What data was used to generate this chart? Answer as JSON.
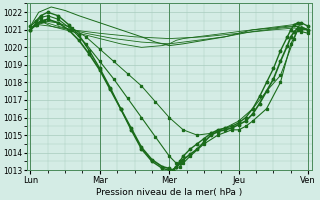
{
  "xlabel": "Pression niveau de la mer( hPa )",
  "ylim": [
    1013,
    1022.5
  ],
  "yticks": [
    1013,
    1014,
    1015,
    1016,
    1017,
    1018,
    1019,
    1020,
    1021,
    1022
  ],
  "xtick_labels": [
    "Lun",
    "Mar",
    "Mer",
    "Jeu",
    "Ven"
  ],
  "xtick_positions": [
    0,
    1,
    2,
    3,
    4
  ],
  "bg_color": "#d4ece5",
  "grid_color": "#a8ccbe",
  "line_color": "#1a6b1a",
  "series": [
    {
      "x": [
        0.0,
        0.05,
        0.1,
        0.2,
        0.3,
        0.5,
        0.7,
        1.0,
        1.3,
        1.6,
        1.9,
        2.0,
        2.05,
        2.1,
        2.2,
        2.4,
        2.6,
        2.8,
        3.0,
        3.2,
        3.4,
        3.6,
        3.8,
        3.85,
        3.9,
        4.0
      ],
      "y": [
        1021.0,
        1021.2,
        1021.3,
        1021.4,
        1021.2,
        1021.0,
        1020.8,
        1020.5,
        1020.2,
        1020.0,
        1020.1,
        1020.2,
        1020.3,
        1020.4,
        1020.5,
        1020.6,
        1020.7,
        1020.8,
        1020.9,
        1021.0,
        1021.1,
        1021.2,
        1021.3,
        1021.3,
        1021.2,
        1021.0
      ],
      "lw": 0.6,
      "marker": null,
      "alpha": 1.0
    },
    {
      "x": [
        0.0,
        0.1,
        0.3,
        0.6,
        1.0,
        1.5,
        2.0,
        2.5,
        3.0,
        3.5,
        3.8,
        4.0
      ],
      "y": [
        1021.1,
        1021.3,
        1021.2,
        1021.0,
        1020.8,
        1020.6,
        1020.5,
        1020.6,
        1020.8,
        1021.0,
        1021.1,
        1021.0
      ],
      "lw": 0.6,
      "marker": null,
      "alpha": 1.0
    },
    {
      "x": [
        0.0,
        0.15,
        0.4,
        0.8,
        1.2,
        1.6,
        2.0,
        2.4,
        2.8,
        3.2,
        3.6,
        3.85,
        3.9,
        4.0
      ],
      "y": [
        1021.0,
        1021.5,
        1021.2,
        1020.8,
        1020.5,
        1020.3,
        1020.2,
        1020.4,
        1020.6,
        1020.9,
        1021.1,
        1021.2,
        1021.1,
        1021.0
      ],
      "lw": 0.6,
      "marker": null,
      "alpha": 1.0
    },
    {
      "x": [
        0.0,
        0.12,
        0.3,
        0.5,
        0.7,
        1.0,
        1.3,
        1.6,
        1.8,
        2.0,
        2.2,
        2.5,
        2.8,
        3.0,
        3.2,
        3.5,
        3.7,
        3.85,
        3.9,
        4.0
      ],
      "y": [
        1021.2,
        1022.0,
        1022.3,
        1022.1,
        1021.8,
        1021.4,
        1021.0,
        1020.6,
        1020.3,
        1020.1,
        1020.2,
        1020.4,
        1020.6,
        1020.8,
        1021.0,
        1021.1,
        1021.2,
        1021.2,
        1021.1,
        1021.0
      ],
      "lw": 0.7,
      "marker": null,
      "alpha": 1.0
    },
    {
      "x": [
        0.0,
        0.1,
        0.2,
        0.4,
        0.6,
        0.8,
        1.0,
        1.2,
        1.4,
        1.6,
        1.8,
        2.0,
        2.2,
        2.4,
        2.6,
        2.8,
        3.0,
        3.2,
        3.4,
        3.6,
        3.8,
        3.85,
        3.9,
        4.0
      ],
      "y": [
        1021.0,
        1021.3,
        1021.5,
        1021.4,
        1021.1,
        1020.6,
        1019.9,
        1019.2,
        1018.5,
        1017.8,
        1016.9,
        1016.0,
        1015.3,
        1015.0,
        1015.1,
        1015.4,
        1015.8,
        1016.5,
        1017.5,
        1018.4,
        1020.5,
        1021.0,
        1021.0,
        1021.0
      ],
      "lw": 0.7,
      "marker": "s",
      "alpha": 1.0
    },
    {
      "x": [
        0.0,
        0.08,
        0.15,
        0.25,
        0.4,
        0.6,
        0.8,
        1.0,
        1.2,
        1.4,
        1.6,
        1.8,
        2.0,
        2.1,
        2.15,
        2.2,
        2.3,
        2.5,
        2.7,
        2.9,
        3.0,
        3.1,
        3.2,
        3.4,
        3.6,
        3.75,
        3.85,
        3.9,
        4.0
      ],
      "y": [
        1021.0,
        1021.4,
        1021.7,
        1021.8,
        1021.6,
        1021.0,
        1020.2,
        1019.2,
        1018.2,
        1017.1,
        1016.0,
        1014.9,
        1013.8,
        1013.4,
        1013.2,
        1013.4,
        1013.8,
        1014.5,
        1015.0,
        1015.3,
        1015.3,
        1015.5,
        1015.8,
        1016.5,
        1018.0,
        1020.2,
        1021.0,
        1020.9,
        1020.8
      ],
      "lw": 0.8,
      "marker": "s",
      "alpha": 1.0
    },
    {
      "x": [
        0.0,
        0.08,
        0.15,
        0.25,
        0.4,
        0.55,
        0.7,
        0.85,
        1.0,
        1.15,
        1.3,
        1.45,
        1.6,
        1.75,
        1.9,
        2.0,
        2.05,
        2.1,
        2.15,
        2.2,
        2.3,
        2.4,
        2.5,
        2.6,
        2.7,
        2.8,
        2.9,
        3.0,
        3.1,
        3.2,
        3.3,
        3.4,
        3.5,
        3.6,
        3.7,
        3.75,
        3.8,
        3.85,
        3.9,
        4.0
      ],
      "y": [
        1021.0,
        1021.3,
        1021.5,
        1021.6,
        1021.4,
        1021.0,
        1020.4,
        1019.6,
        1018.7,
        1017.6,
        1016.5,
        1015.4,
        1014.3,
        1013.6,
        1013.2,
        1013.1,
        1013.0,
        1013.2,
        1013.4,
        1013.6,
        1013.9,
        1014.2,
        1014.6,
        1015.0,
        1015.2,
        1015.3,
        1015.4,
        1015.6,
        1015.8,
        1016.2,
        1016.8,
        1017.5,
        1018.2,
        1019.2,
        1020.1,
        1020.6,
        1020.9,
        1021.1,
        1021.1,
        1021.0
      ],
      "lw": 1.2,
      "marker": "o",
      "alpha": 1.0
    },
    {
      "x": [
        0.0,
        0.08,
        0.15,
        0.25,
        0.4,
        0.55,
        0.7,
        0.85,
        1.0,
        1.15,
        1.3,
        1.45,
        1.6,
        1.75,
        1.9,
        2.0,
        2.05,
        2.1,
        2.15,
        2.2,
        2.3,
        2.4,
        2.5,
        2.6,
        2.7,
        2.8,
        2.9,
        3.0,
        3.1,
        3.2,
        3.3,
        3.4,
        3.5,
        3.6,
        3.7,
        3.75,
        3.8,
        3.85,
        3.9,
        4.0
      ],
      "y": [
        1021.2,
        1021.5,
        1021.8,
        1022.0,
        1021.8,
        1021.3,
        1020.7,
        1019.8,
        1018.8,
        1017.7,
        1016.5,
        1015.3,
        1014.2,
        1013.5,
        1013.1,
        1013.0,
        1013.0,
        1013.2,
        1013.5,
        1013.8,
        1014.2,
        1014.5,
        1014.8,
        1015.1,
        1015.3,
        1015.4,
        1015.5,
        1015.7,
        1016.0,
        1016.5,
        1017.2,
        1018.0,
        1018.8,
        1019.8,
        1020.6,
        1021.0,
        1021.3,
        1021.4,
        1021.4,
        1021.2
      ],
      "lw": 1.0,
      "marker": "o",
      "alpha": 1.0
    }
  ]
}
